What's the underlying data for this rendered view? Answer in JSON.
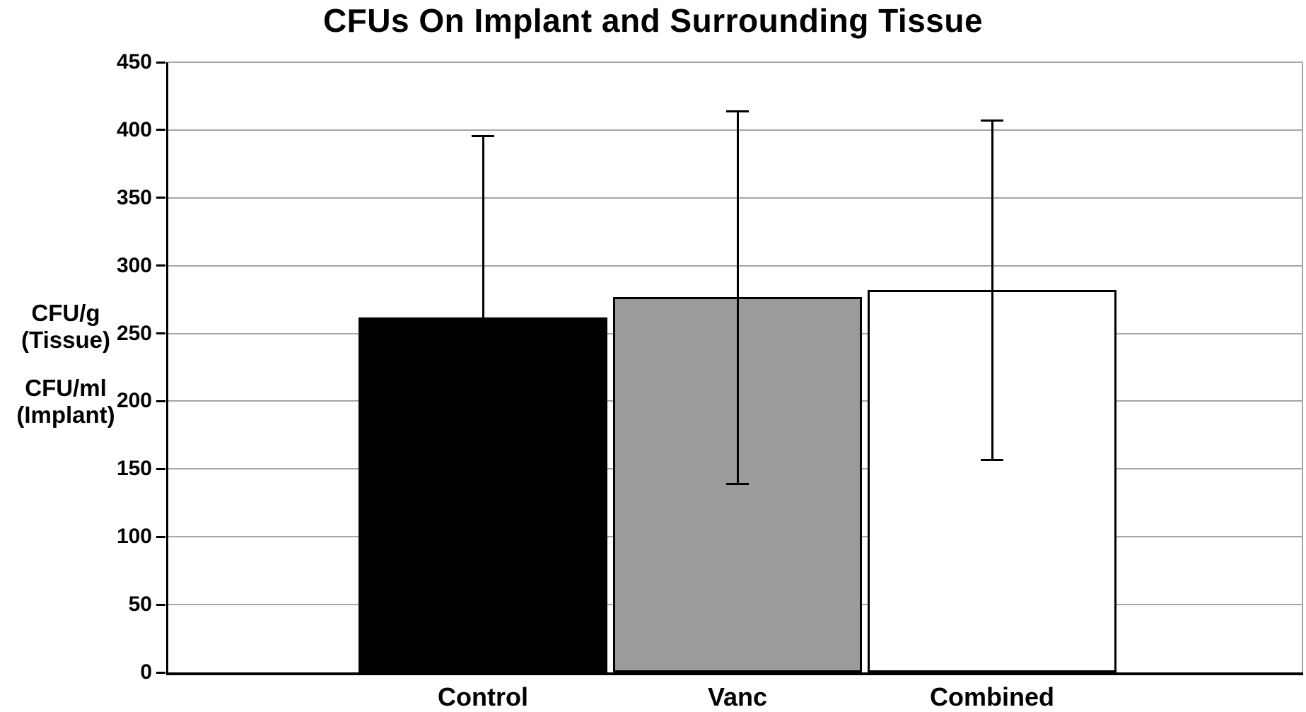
{
  "chart_data": {
    "type": "bar",
    "title": "CFUs On Implant and Surrounding Tissue",
    "ylabel_groups": [
      [
        "CFU/g",
        "(Tissue)"
      ],
      [
        "CFU/ml",
        "(Implant)"
      ]
    ],
    "categories": [
      "Control",
      "Vanc",
      "Combined"
    ],
    "values": [
      262,
      277,
      282
    ],
    "errors": [
      {
        "low": null,
        "high": 396
      },
      {
        "low": 139,
        "high": 414
      },
      {
        "low": 157,
        "high": 407
      }
    ],
    "bar_colors": [
      "#000000",
      "#9b9b9b",
      "#ffffff"
    ],
    "bar_border_color": "#000000",
    "ylim": [
      0,
      450
    ],
    "ytick_step": 50,
    "grid": true,
    "gridline_color": "#a6a6a6",
    "xlabel": "",
    "legend": "none"
  }
}
